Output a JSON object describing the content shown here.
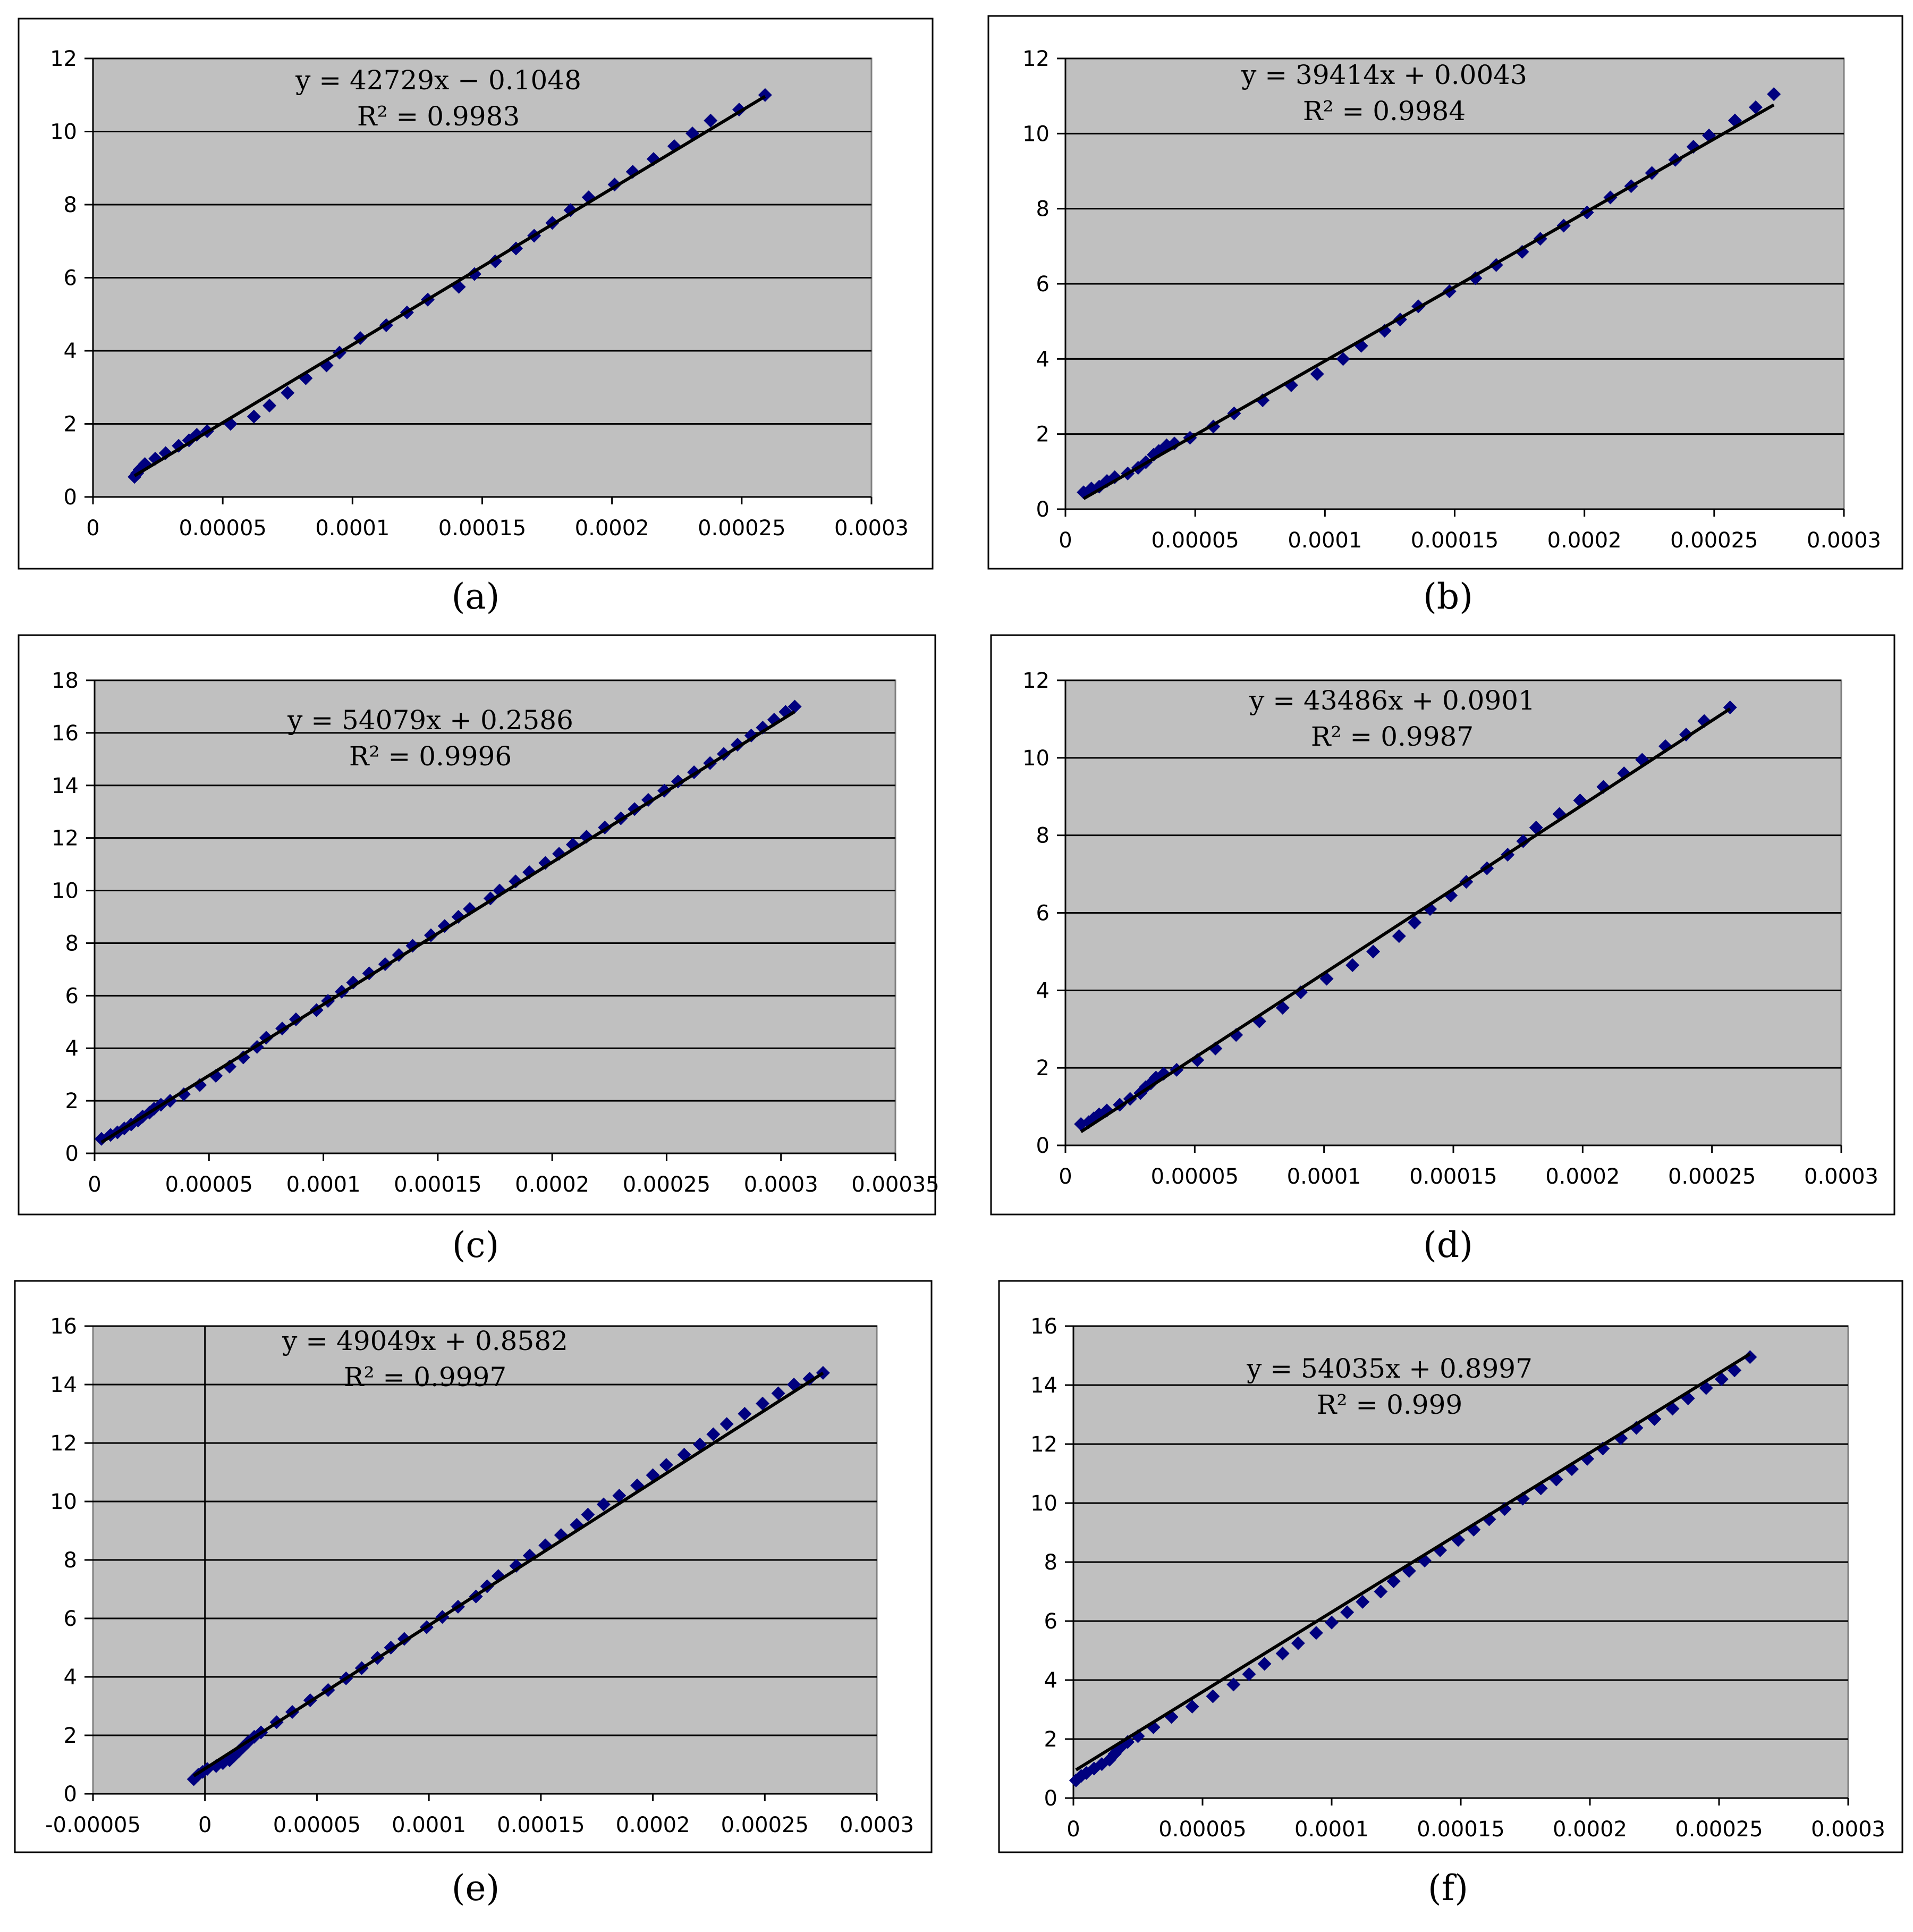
{
  "figure": {
    "panels": [
      "(a)",
      "(b)",
      "(c)",
      "(d)",
      "(e)",
      "(f)"
    ]
  },
  "colors": {
    "plot_bg": "#c0c0c0",
    "marker": "#00007f",
    "trend": "#000000",
    "grid": "#000000"
  },
  "chart_data": [
    {
      "type": "scatter",
      "panel_label": "(a)",
      "title": "",
      "xlabel": "",
      "ylabel": "",
      "xlim": [
        0,
        0.0003
      ],
      "ylim": [
        0,
        12
      ],
      "x_ticks": [
        "0",
        "0.00005",
        "0.0001",
        "0.00015",
        "0.0002",
        "0.00025",
        "0.0003"
      ],
      "y_ticks": [
        "0",
        "2",
        "4",
        "6",
        "8",
        "10",
        "12"
      ],
      "grid": "horizontal",
      "trendline": {
        "slope": 42729,
        "intercept": -0.1048,
        "x_range": [
          1.6e-05,
          0.000259
        ]
      },
      "equation": "y = 42729x − 0.1048",
      "r_squared": "R² = 0.9983",
      "points": [
        [
          1.6e-05,
          0.55
        ],
        [
          1.7e-05,
          0.65
        ],
        [
          1.8e-05,
          0.75
        ],
        [
          2e-05,
          0.9
        ],
        [
          2.4e-05,
          1.05
        ],
        [
          2.8e-05,
          1.2
        ],
        [
          3.3e-05,
          1.4
        ],
        [
          3.7e-05,
          1.55
        ],
        [
          4e-05,
          1.7
        ],
        [
          4.4e-05,
          1.8
        ],
        [
          5.3e-05,
          2.0
        ],
        [
          6.2e-05,
          2.2
        ],
        [
          6.8e-05,
          2.5
        ],
        [
          7.5e-05,
          2.85
        ],
        [
          8.2e-05,
          3.25
        ],
        [
          9e-05,
          3.6
        ],
        [
          9.5e-05,
          3.95
        ],
        [
          0.000103,
          4.35
        ],
        [
          0.000113,
          4.7
        ],
        [
          0.000121,
          5.05
        ],
        [
          0.000129,
          5.4
        ],
        [
          0.000141,
          5.75
        ],
        [
          0.000147,
          6.1
        ],
        [
          0.000155,
          6.45
        ],
        [
          0.000163,
          6.8
        ],
        [
          0.00017,
          7.15
        ],
        [
          0.000177,
          7.5
        ],
        [
          0.000184,
          7.85
        ],
        [
          0.000191,
          8.2
        ],
        [
          0.000201,
          8.55
        ],
        [
          0.000208,
          8.9
        ],
        [
          0.000216,
          9.25
        ],
        [
          0.000224,
          9.6
        ],
        [
          0.000231,
          9.95
        ],
        [
          0.000238,
          10.3
        ],
        [
          0.000249,
          10.6
        ],
        [
          0.000259,
          11.0
        ]
      ]
    },
    {
      "type": "scatter",
      "panel_label": "(b)",
      "title": "",
      "xlabel": "",
      "ylabel": "",
      "xlim": [
        0,
        0.0003
      ],
      "ylim": [
        0,
        12
      ],
      "x_ticks": [
        "0",
        "0.00005",
        "0.0001",
        "0.00015",
        "0.0002",
        "0.00025",
        "0.0003"
      ],
      "y_ticks": [
        "0",
        "2",
        "4",
        "6",
        "8",
        "10",
        "12"
      ],
      "grid": "horizontal",
      "trendline": {
        "slope": 39414,
        "intercept": 0.0043,
        "x_range": [
          7e-06,
          0.000273
        ]
      },
      "equation": "y = 39414x + 0.0043",
      "r_squared": "R² = 0.9984",
      "points": [
        [
          7e-06,
          0.45
        ],
        [
          1e-05,
          0.55
        ],
        [
          1.3e-05,
          0.6
        ],
        [
          1.6e-05,
          0.75
        ],
        [
          1.9e-05,
          0.85
        ],
        [
          2.4e-05,
          0.95
        ],
        [
          2.8e-05,
          1.1
        ],
        [
          3.1e-05,
          1.25
        ],
        [
          3.4e-05,
          1.45
        ],
        [
          3.6e-05,
          1.55
        ],
        [
          3.9e-05,
          1.7
        ],
        [
          4.2e-05,
          1.75
        ],
        [
          4.8e-05,
          1.9
        ],
        [
          5.7e-05,
          2.2
        ],
        [
          6.5e-05,
          2.55
        ],
        [
          7.6e-05,
          2.9
        ],
        [
          8.7e-05,
          3.3
        ],
        [
          9.7e-05,
          3.6
        ],
        [
          0.000107,
          4.0
        ],
        [
          0.000114,
          4.35
        ],
        [
          0.000123,
          4.75
        ],
        [
          0.000129,
          5.05
        ],
        [
          0.000136,
          5.4
        ],
        [
          0.000148,
          5.8
        ],
        [
          0.000158,
          6.15
        ],
        [
          0.000166,
          6.5
        ],
        [
          0.000176,
          6.85
        ],
        [
          0.000183,
          7.2
        ],
        [
          0.000192,
          7.55
        ],
        [
          0.000201,
          7.9
        ],
        [
          0.00021,
          8.3
        ],
        [
          0.000218,
          8.6
        ],
        [
          0.000226,
          8.95
        ],
        [
          0.000235,
          9.3
        ],
        [
          0.000242,
          9.65
        ],
        [
          0.000248,
          9.95
        ],
        [
          0.000258,
          10.35
        ],
        [
          0.000266,
          10.7
        ],
        [
          0.000273,
          11.05
        ]
      ]
    },
    {
      "type": "scatter",
      "panel_label": "(c)",
      "title": "",
      "xlabel": "",
      "ylabel": "",
      "xlim": [
        0,
        0.00035
      ],
      "ylim": [
        0,
        18
      ],
      "x_ticks": [
        "0",
        "0.00005",
        "0.0001",
        "0.00015",
        "0.0002",
        "0.00025",
        "0.0003",
        "0.00035"
      ],
      "y_ticks": [
        "0",
        "2",
        "4",
        "6",
        "8",
        "10",
        "12",
        "14",
        "16",
        "18"
      ],
      "grid": "horizontal",
      "trendline": {
        "slope": 54079,
        "intercept": 0.2586,
        "x_range": [
          3e-06,
          0.000306
        ]
      },
      "equation": "y = 54079x + 0.2586",
      "r_squared": "R² = 0.9996",
      "points": [
        [
          3e-06,
          0.55
        ],
        [
          7e-06,
          0.7
        ],
        [
          1e-05,
          0.8
        ],
        [
          1.3e-05,
          0.95
        ],
        [
          1.6e-05,
          1.1
        ],
        [
          1.9e-05,
          1.25
        ],
        [
          2.1e-05,
          1.4
        ],
        [
          2.4e-05,
          1.55
        ],
        [
          2.6e-05,
          1.7
        ],
        [
          2.9e-05,
          1.85
        ],
        [
          3.3e-05,
          2.0
        ],
        [
          3.9e-05,
          2.25
        ],
        [
          4.6e-05,
          2.6
        ],
        [
          5.3e-05,
          2.95
        ],
        [
          5.9e-05,
          3.3
        ],
        [
          6.5e-05,
          3.65
        ],
        [
          7.1e-05,
          4.05
        ],
        [
          7.5e-05,
          4.4
        ],
        [
          8.2e-05,
          4.75
        ],
        [
          8.8e-05,
          5.1
        ],
        [
          9.7e-05,
          5.45
        ],
        [
          0.000102,
          5.8
        ],
        [
          0.000108,
          6.15
        ],
        [
          0.000113,
          6.5
        ],
        [
          0.00012,
          6.85
        ],
        [
          0.000127,
          7.2
        ],
        [
          0.000133,
          7.55
        ],
        [
          0.000139,
          7.9
        ],
        [
          0.000147,
          8.3
        ],
        [
          0.000153,
          8.65
        ],
        [
          0.000159,
          9.0
        ],
        [
          0.000164,
          9.3
        ],
        [
          0.000173,
          9.7
        ],
        [
          0.000177,
          10.0
        ],
        [
          0.000184,
          10.35
        ],
        [
          0.00019,
          10.7
        ],
        [
          0.000197,
          11.05
        ],
        [
          0.000203,
          11.4
        ],
        [
          0.000209,
          11.75
        ],
        [
          0.000215,
          12.05
        ],
        [
          0.000223,
          12.4
        ],
        [
          0.00023,
          12.75
        ],
        [
          0.000236,
          13.1
        ],
        [
          0.000242,
          13.45
        ],
        [
          0.000249,
          13.8
        ],
        [
          0.000255,
          14.15
        ],
        [
          0.000262,
          14.5
        ],
        [
          0.000269,
          14.85
        ],
        [
          0.000275,
          15.2
        ],
        [
          0.000281,
          15.55
        ],
        [
          0.000287,
          15.9
        ],
        [
          0.000292,
          16.2
        ],
        [
          0.000297,
          16.5
        ],
        [
          0.000302,
          16.8
        ],
        [
          0.000306,
          17.0
        ]
      ]
    },
    {
      "type": "scatter",
      "panel_label": "(d)",
      "title": "",
      "xlabel": "",
      "ylabel": "",
      "xlim": [
        0,
        0.0003
      ],
      "ylim": [
        0,
        12
      ],
      "x_ticks": [
        "0",
        "0.00005",
        "0.0001",
        "0.00015",
        "0.0002",
        "0.00025",
        "0.0003"
      ],
      "y_ticks": [
        "0",
        "2",
        "4",
        "6",
        "8",
        "10",
        "12"
      ],
      "grid": "horizontal",
      "trendline": {
        "slope": 43486,
        "intercept": 0.0901,
        "x_range": [
          6e-06,
          0.000257
        ]
      },
      "equation": "y = 43486x + 0.0901",
      "r_squared": "R² = 0.9987",
      "points": [
        [
          6e-06,
          0.55
        ],
        [
          9e-06,
          0.6
        ],
        [
          1.1e-05,
          0.7
        ],
        [
          1.3e-05,
          0.8
        ],
        [
          1.6e-05,
          0.9
        ],
        [
          2.1e-05,
          1.05
        ],
        [
          2.5e-05,
          1.2
        ],
        [
          2.9e-05,
          1.35
        ],
        [
          3.1e-05,
          1.5
        ],
        [
          3.3e-05,
          1.6
        ],
        [
          3.5e-05,
          1.75
        ],
        [
          3.8e-05,
          1.85
        ],
        [
          4.3e-05,
          1.95
        ],
        [
          5.1e-05,
          2.2
        ],
        [
          5.8e-05,
          2.5
        ],
        [
          6.6e-05,
          2.85
        ],
        [
          7.5e-05,
          3.2
        ],
        [
          8.4e-05,
          3.55
        ],
        [
          9.1e-05,
          3.95
        ],
        [
          0.000101,
          4.3
        ],
        [
          0.000111,
          4.65
        ],
        [
          0.000119,
          5.0
        ],
        [
          0.000129,
          5.4
        ],
        [
          0.000135,
          5.75
        ],
        [
          0.000141,
          6.1
        ],
        [
          0.000149,
          6.45
        ],
        [
          0.000155,
          6.8
        ],
        [
          0.000163,
          7.15
        ],
        [
          0.000171,
          7.5
        ],
        [
          0.000177,
          7.85
        ],
        [
          0.000182,
          8.2
        ],
        [
          0.000191,
          8.55
        ],
        [
          0.000199,
          8.9
        ],
        [
          0.000208,
          9.25
        ],
        [
          0.000216,
          9.6
        ],
        [
          0.000223,
          9.95
        ],
        [
          0.000232,
          10.3
        ],
        [
          0.00024,
          10.6
        ],
        [
          0.000247,
          10.95
        ],
        [
          0.000257,
          11.3
        ]
      ]
    },
    {
      "type": "scatter",
      "panel_label": "(e)",
      "title": "",
      "xlabel": "",
      "ylabel": "",
      "xlim": [
        -5e-05,
        0.0003
      ],
      "ylim": [
        0,
        16
      ],
      "x_ticks": [
        "-0.00005",
        "0",
        "0.00005",
        "0.0001",
        "0.00015",
        "0.0002",
        "0.00025",
        "0.0003"
      ],
      "y_ticks": [
        "0",
        "2",
        "4",
        "6",
        "8",
        "10",
        "12",
        "14",
        "16"
      ],
      "grid": "horizontal",
      "trendline": {
        "slope": 49049,
        "intercept": 0.8582,
        "x_range": [
          -5e-06,
          0.000276
        ]
      },
      "equation": "y = 49049x + 0.8582",
      "r_squared": "R² = 0.9997",
      "points": [
        [
          -5e-06,
          0.5
        ],
        [
          -3e-06,
          0.65
        ],
        [
          -1e-06,
          0.75
        ],
        [
          1e-06,
          0.85
        ],
        [
          5e-06,
          0.95
        ],
        [
          8e-06,
          1.05
        ],
        [
          1.1e-05,
          1.15
        ],
        [
          1.3e-05,
          1.3
        ],
        [
          1.5e-05,
          1.45
        ],
        [
          1.7e-05,
          1.6
        ],
        [
          1.9e-05,
          1.75
        ],
        [
          2.2e-05,
          1.95
        ],
        [
          2.5e-05,
          2.1
        ],
        [
          3.2e-05,
          2.45
        ],
        [
          3.9e-05,
          2.8
        ],
        [
          4.7e-05,
          3.2
        ],
        [
          5.5e-05,
          3.55
        ],
        [
          6.3e-05,
          3.95
        ],
        [
          7e-05,
          4.3
        ],
        [
          7.7e-05,
          4.65
        ],
        [
          8.3e-05,
          5.0
        ],
        [
          8.9e-05,
          5.3
        ],
        [
          9.9e-05,
          5.7
        ],
        [
          0.000106,
          6.05
        ],
        [
          0.000113,
          6.4
        ],
        [
          0.000121,
          6.75
        ],
        [
          0.000126,
          7.1
        ],
        [
          0.000131,
          7.45
        ],
        [
          0.000139,
          7.8
        ],
        [
          0.000145,
          8.15
        ],
        [
          0.000152,
          8.5
        ],
        [
          0.000159,
          8.85
        ],
        [
          0.000166,
          9.2
        ],
        [
          0.000171,
          9.55
        ],
        [
          0.000178,
          9.9
        ],
        [
          0.000185,
          10.2
        ],
        [
          0.000193,
          10.55
        ],
        [
          0.0002,
          10.9
        ],
        [
          0.000206,
          11.25
        ],
        [
          0.000214,
          11.6
        ],
        [
          0.000221,
          11.95
        ],
        [
          0.000227,
          12.3
        ],
        [
          0.000233,
          12.65
        ],
        [
          0.000241,
          13.0
        ],
        [
          0.000249,
          13.35
        ],
        [
          0.000256,
          13.7
        ],
        [
          0.000263,
          14.0
        ],
        [
          0.00027,
          14.2
        ],
        [
          0.000276,
          14.4
        ]
      ]
    },
    {
      "type": "scatter",
      "panel_label": "(f)",
      "title": "",
      "xlabel": "",
      "ylabel": "",
      "xlim": [
        0,
        0.0003
      ],
      "ylim": [
        0,
        16
      ],
      "x_ticks": [
        "0",
        "0.00005",
        "0.0001",
        "0.00015",
        "0.0002",
        "0.00025",
        "0.0003"
      ],
      "y_ticks": [
        "0",
        "2",
        "4",
        "6",
        "8",
        "10",
        "12",
        "14",
        "16"
      ],
      "grid": "horizontal",
      "trendline": {
        "slope": 54035,
        "intercept": 0.8997,
        "x_range": [
          1e-06,
          0.000262
        ]
      },
      "equation": "y = 54035x + 0.8997",
      "r_squared": "R² = 0.999",
      "points": [
        [
          1e-06,
          0.6
        ],
        [
          3e-06,
          0.75
        ],
        [
          5e-06,
          0.85
        ],
        [
          8e-06,
          1.0
        ],
        [
          1.1e-05,
          1.15
        ],
        [
          1.4e-05,
          1.3
        ],
        [
          1.6e-05,
          1.5
        ],
        [
          1.8e-05,
          1.7
        ],
        [
          2.1e-05,
          1.9
        ],
        [
          2.5e-05,
          2.1
        ],
        [
          3.1e-05,
          2.4
        ],
        [
          3.8e-05,
          2.75
        ],
        [
          4.6e-05,
          3.1
        ],
        [
          5.4e-05,
          3.45
        ],
        [
          6.2e-05,
          3.85
        ],
        [
          6.8e-05,
          4.2
        ],
        [
          7.4e-05,
          4.55
        ],
        [
          8.1e-05,
          4.9
        ],
        [
          8.7e-05,
          5.25
        ],
        [
          9.4e-05,
          5.6
        ],
        [
          0.0001,
          5.95
        ],
        [
          0.000106,
          6.3
        ],
        [
          0.000112,
          6.65
        ],
        [
          0.000119,
          7.0
        ],
        [
          0.000124,
          7.35
        ],
        [
          0.00013,
          7.7
        ],
        [
          0.000136,
          8.05
        ],
        [
          0.000142,
          8.4
        ],
        [
          0.000149,
          8.75
        ],
        [
          0.000155,
          9.1
        ],
        [
          0.000161,
          9.45
        ],
        [
          0.000167,
          9.8
        ],
        [
          0.000174,
          10.15
        ],
        [
          0.000181,
          10.5
        ],
        [
          0.000187,
          10.8
        ],
        [
          0.000193,
          11.15
        ],
        [
          0.000199,
          11.5
        ],
        [
          0.000205,
          11.85
        ],
        [
          0.000212,
          12.2
        ],
        [
          0.000218,
          12.55
        ],
        [
          0.000225,
          12.85
        ],
        [
          0.000232,
          13.2
        ],
        [
          0.000238,
          13.55
        ],
        [
          0.000245,
          13.9
        ],
        [
          0.000251,
          14.2
        ],
        [
          0.000256,
          14.5
        ],
        [
          0.000262,
          14.95
        ]
      ]
    }
  ]
}
